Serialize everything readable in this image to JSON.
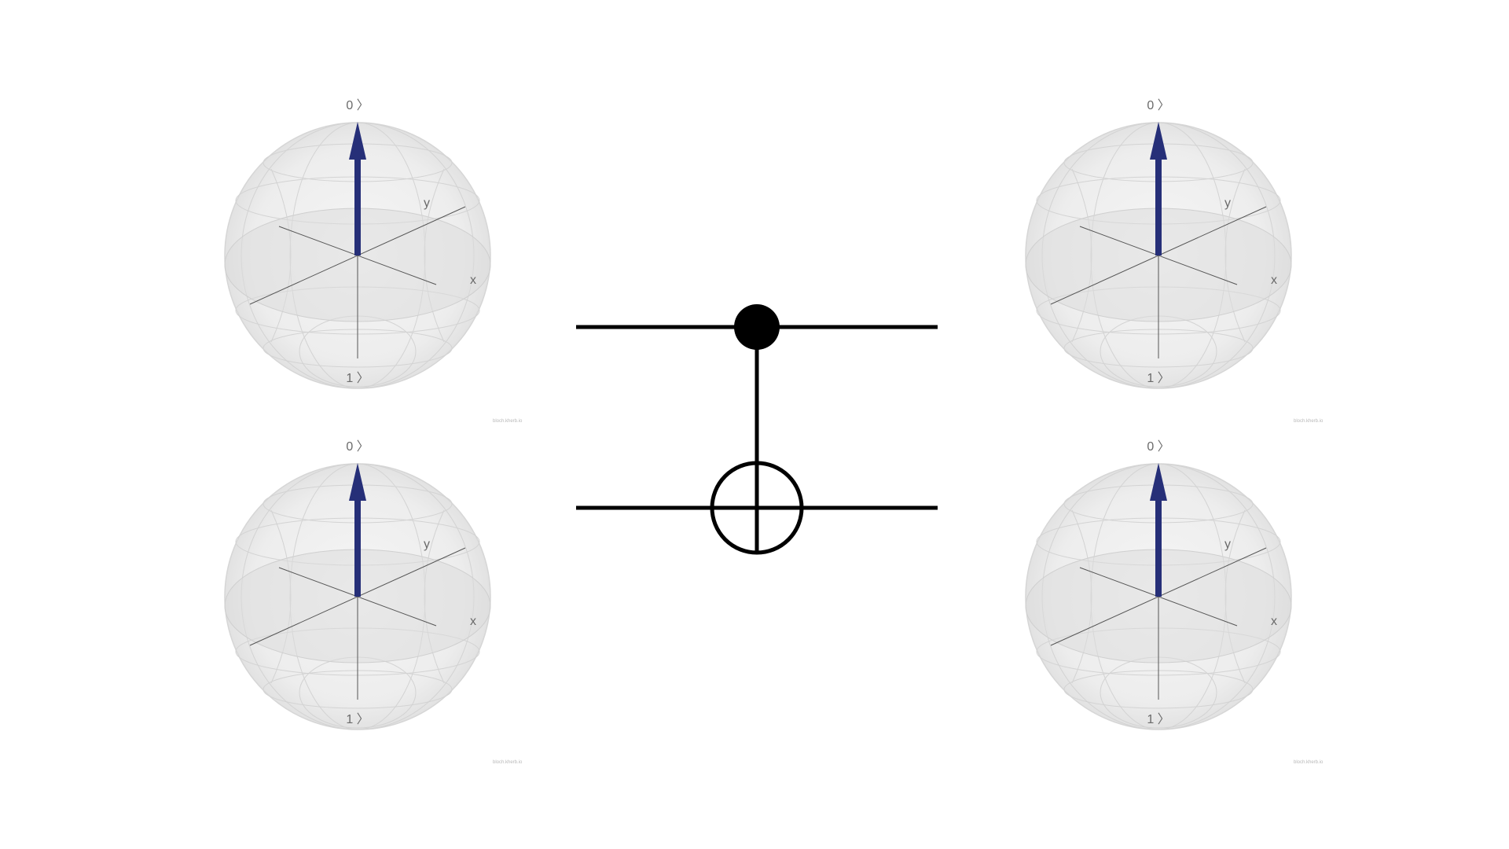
{
  "spheres": [
    {
      "id": "input-top",
      "labels": {
        "zero": "0 〉",
        "one": "1 〉",
        "x": "x",
        "y": "y"
      },
      "watermark": "bloch.kherb.io",
      "state": "|0⟩"
    },
    {
      "id": "input-bottom",
      "labels": {
        "zero": "0 〉",
        "one": "1 〉",
        "x": "x",
        "y": "y"
      },
      "watermark": "bloch.kherb.io",
      "state": "|0⟩"
    },
    {
      "id": "output-top",
      "labels": {
        "zero": "0 〉",
        "one": "1 〉",
        "x": "x",
        "y": "y"
      },
      "watermark": "bloch.kherb.io",
      "state": "|0⟩"
    },
    {
      "id": "output-bottom",
      "labels": {
        "zero": "0 〉",
        "one": "1 〉",
        "x": "x",
        "y": "y"
      },
      "watermark": "bloch.kherb.io",
      "state": "|0⟩"
    }
  ],
  "gate": {
    "type": "CNOT",
    "control_qubit": 0,
    "target_qubit": 1
  },
  "colors": {
    "state_vector": "#262f78",
    "sphere_fill": "#f0f0f0",
    "sphere_edge": "#d5d5d5",
    "wire": "#000000"
  }
}
